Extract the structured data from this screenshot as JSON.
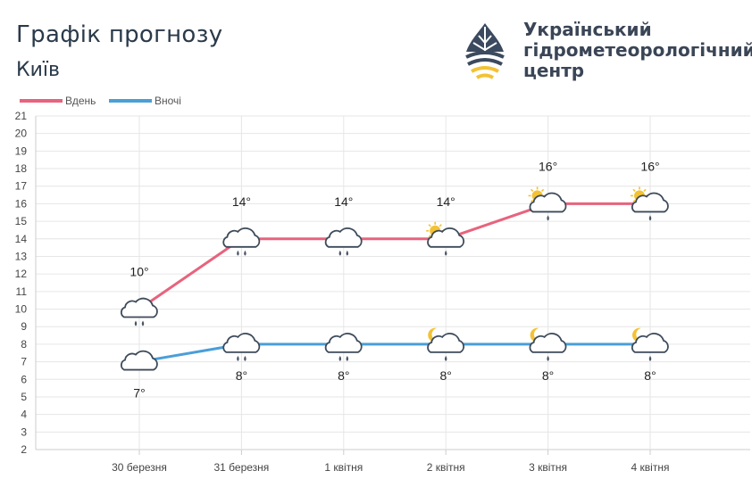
{
  "header": {
    "title": "Графік прогнозу",
    "city": "Київ",
    "org_line1": "Український",
    "org_line2": "гідрометеорологічний",
    "org_line3": "центр"
  },
  "colors": {
    "day": "#e8637d",
    "night": "#4a9fd8",
    "grid": "#e6e6e6",
    "axis_text": "#444444",
    "cloud_stroke": "#3d4a5a",
    "sun": "#f3c234",
    "moon": "#f3c234",
    "drop": "#4a5566"
  },
  "chart_data": {
    "type": "line",
    "categories": [
      "30 березня",
      "31 березня",
      "1 квітня",
      "2 квітня",
      "3 квітня",
      "4 квітня"
    ],
    "series": [
      {
        "name": "Вдень",
        "values": [
          10,
          14,
          14,
          14,
          16,
          16
        ],
        "labels": [
          "10°",
          "14°",
          "14°",
          "14°",
          "16°",
          "16°"
        ],
        "icons": [
          "cloud-rain",
          "cloud-rain",
          "cloud-rain",
          "sun-cloud-rain",
          "sun-cloud-rain",
          "sun-cloud-rain"
        ]
      },
      {
        "name": "Вночі",
        "values": [
          7,
          8,
          8,
          8,
          8,
          8
        ],
        "labels": [
          "7°",
          "8°",
          "8°",
          "8°",
          "8°",
          "8°"
        ],
        "icons": [
          "cloud",
          "cloud-rain",
          "cloud-rain",
          "moon-cloud-rain",
          "moon-cloud-rain",
          "moon-cloud-rain"
        ]
      }
    ],
    "ylim": [
      2,
      21
    ],
    "yticks": [
      2,
      3,
      4,
      5,
      6,
      7,
      8,
      9,
      10,
      11,
      12,
      13,
      14,
      15,
      16,
      17,
      18,
      19,
      20,
      21
    ],
    "grid": true,
    "legend_position": "top-left"
  }
}
